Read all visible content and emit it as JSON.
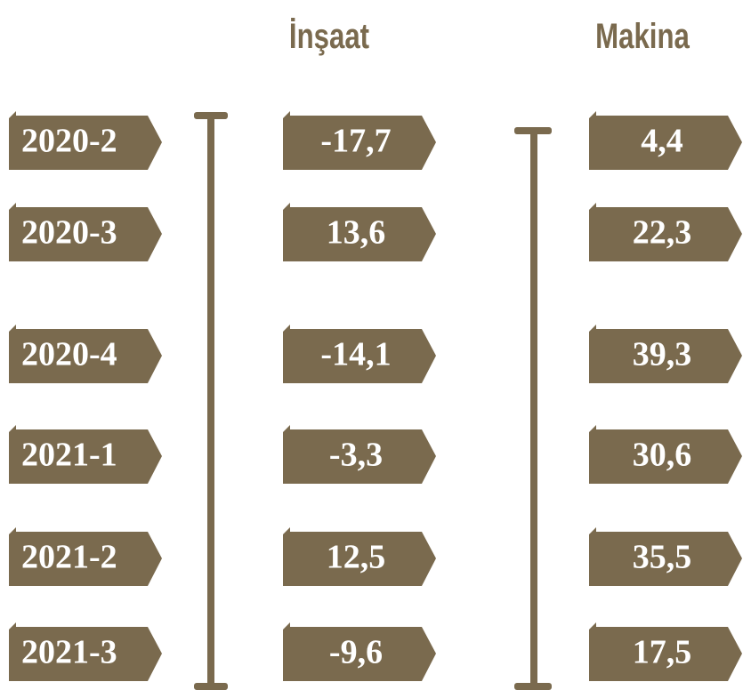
{
  "header": {
    "columns": [
      "İnşaat",
      "Makina"
    ]
  },
  "rows": [
    {
      "period": "2020-2",
      "insaat": "-17,7",
      "makina": "4,4"
    },
    {
      "period": "2020-3",
      "insaat": "13,6",
      "makina": "22,3"
    },
    {
      "period": "2020-4",
      "insaat": "-14,1",
      "makina": "39,3"
    },
    {
      "period": "2021-1",
      "insaat": "-3,3",
      "makina": "30,6"
    },
    {
      "period": "2021-2",
      "insaat": "12,5",
      "makina": "35,5"
    },
    {
      "period": "2021-3",
      "insaat": "-9,6",
      "makina": "17,5"
    }
  ]
}
